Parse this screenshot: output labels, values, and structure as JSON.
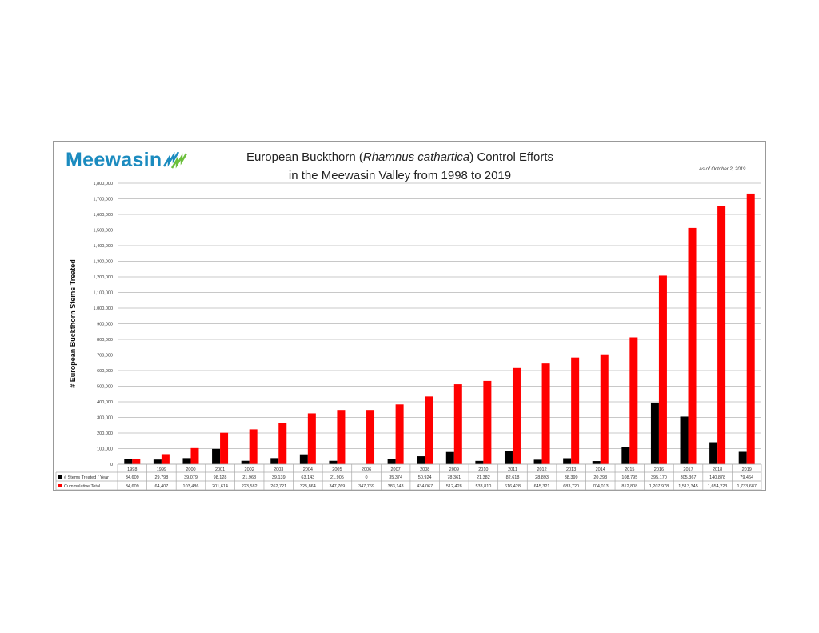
{
  "header": {
    "logo_text": "Meewasin",
    "title_line1_pre": "European Buckthorn (",
    "title_line1_italic": "Rhamnus cathartica",
    "title_line1_post": ") Control Efforts",
    "title_line2": "in the Meewasin Valley from 1998 to 2019",
    "as_of": "As of October 2, 2019"
  },
  "colors": {
    "stems": "#000000",
    "cumulative": "#ff0000",
    "logo": "#1b8bbf"
  },
  "chart_data": {
    "type": "bar",
    "title": "European Buckthorn (Rhamnus cathartica) Control Efforts in the Meewasin Valley from 1998 to 2019",
    "xlabel": "",
    "ylabel": "# European Buckthorn Stems Treated",
    "ylim": [
      0,
      1800000
    ],
    "ytick_step": 100000,
    "grid": true,
    "legend_placement": "data-table",
    "categories": [
      "1998",
      "1999",
      "2000",
      "2001",
      "2002",
      "2003",
      "2004",
      "2005",
      "2006",
      "2007",
      "2008",
      "2009",
      "2010",
      "2011",
      "2012",
      "2013",
      "2014",
      "2015",
      "2016",
      "2017",
      "2018",
      "2019"
    ],
    "series": [
      {
        "name": "# Stems Treated / Year",
        "values": [
          34609,
          29798,
          39079,
          98128,
          21968,
          39139,
          63143,
          21905,
          0,
          35374,
          50924,
          78361,
          21382,
          82618,
          28893,
          38399,
          20293,
          108795,
          395170,
          305367,
          140878,
          79464
        ]
      },
      {
        "name": "Cummulative Total",
        "values": [
          34609,
          64407,
          103486,
          201614,
          223582,
          262721,
          325864,
          347769,
          347769,
          383143,
          434067,
          512428,
          533810,
          616428,
          645321,
          683720,
          704013,
          812808,
          1207978,
          1513345,
          1654223,
          1733687
        ]
      }
    ]
  }
}
